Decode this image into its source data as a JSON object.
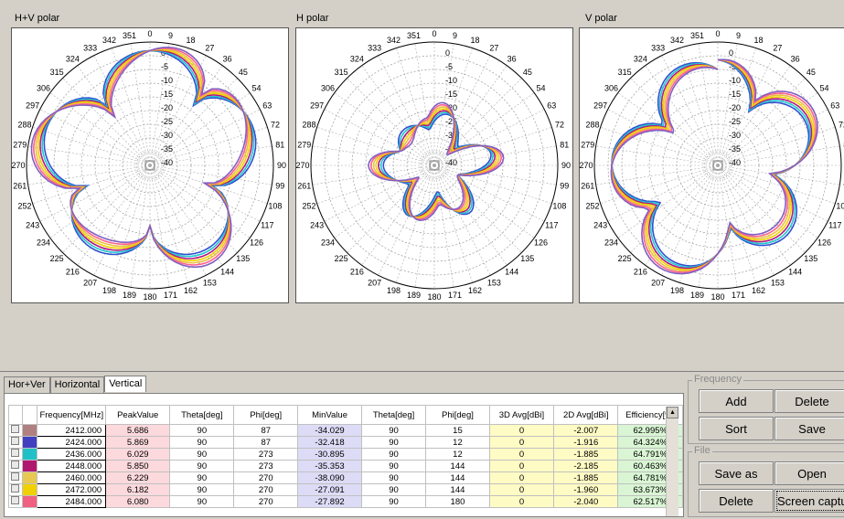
{
  "plots": [
    {
      "title": "H+V polar",
      "mode": "hv"
    },
    {
      "title": "H polar",
      "mode": "h"
    },
    {
      "title": "V polar",
      "mode": "v"
    }
  ],
  "polar_scale": {
    "ring_labels": [
      "0",
      "-5",
      "-10",
      "-15",
      "-20",
      "-25",
      "-30",
      "-35",
      "-40"
    ],
    "angle_labels": [
      "0",
      "9",
      "18",
      "27",
      "36",
      "45",
      "54",
      "63",
      "72",
      "81",
      "90",
      "99",
      "108",
      "117",
      "126",
      "135",
      "144",
      "153",
      "162",
      "171",
      "180",
      "189",
      "198",
      "207",
      "216",
      "225",
      "234",
      "243",
      "252",
      "261",
      "270",
      "279",
      "288",
      "297",
      "306",
      "315",
      "324",
      "333",
      "342",
      "351"
    ]
  },
  "tabs": [
    "Hor+Ver",
    "Horizontal",
    "Vertical"
  ],
  "active_tab": "Vertical",
  "table": {
    "headers": [
      "Frequency[MHz]",
      "PeakValue",
      "Theta[deg]",
      "Phi[deg]",
      "MinValue",
      "Theta[deg]",
      "Phi[deg]",
      "3D Avg[dBi]",
      "2D Avg[dBi]",
      "Efficiency[%]"
    ],
    "rows": [
      {
        "color": "#b08080",
        "cells": [
          "2412.000",
          "5.686",
          "90",
          "87",
          "-34.029",
          "90",
          "15",
          "0",
          "-2.007",
          "62.995%"
        ]
      },
      {
        "color": "#4040c0",
        "cells": [
          "2424.000",
          "5.869",
          "90",
          "87",
          "-32.418",
          "90",
          "12",
          "0",
          "-1.916",
          "64.324%"
        ]
      },
      {
        "color": "#20c0c8",
        "cells": [
          "2436.000",
          "6.029",
          "90",
          "273",
          "-30.895",
          "90",
          "12",
          "0",
          "-1.885",
          "64.791%"
        ]
      },
      {
        "color": "#b01870",
        "cells": [
          "2448.000",
          "5.850",
          "90",
          "273",
          "-35.353",
          "90",
          "144",
          "0",
          "-2.185",
          "60.463%"
        ]
      },
      {
        "color": "#e8c850",
        "cells": [
          "2460.000",
          "6.229",
          "90",
          "270",
          "-38.090",
          "90",
          "144",
          "0",
          "-1.885",
          "64.781%"
        ]
      },
      {
        "color": "#f0d000",
        "cells": [
          "2472.000",
          "6.182",
          "90",
          "270",
          "-27.091",
          "90",
          "144",
          "0",
          "-1.960",
          "63.673%"
        ]
      },
      {
        "color": "#f06080",
        "cells": [
          "2484.000",
          "6.080",
          "90",
          "270",
          "-27.892",
          "90",
          "180",
          "0",
          "-2.040",
          "62.517%"
        ]
      }
    ]
  },
  "frequency_group": {
    "label": "Frequency",
    "add": "Add",
    "delete": "Delete",
    "sort": "Sort",
    "save": "Save"
  },
  "file_group": {
    "label": "File",
    "save_as": "Save as",
    "open": "Open",
    "delete": "Delete",
    "screen_capture": "Screen captur"
  },
  "series_colors": [
    "#3050d0",
    "#20c8d0",
    "#b01880",
    "#f0d000",
    "#e8c040",
    "#ff6090",
    "#8060c0"
  ]
}
